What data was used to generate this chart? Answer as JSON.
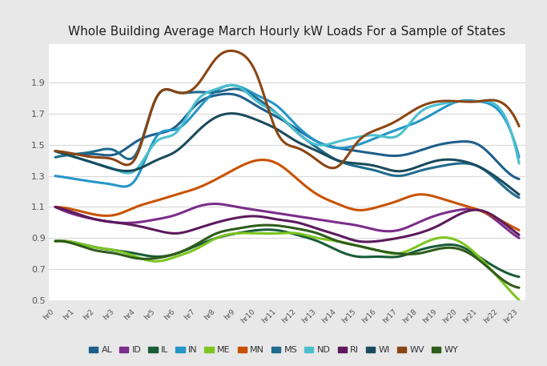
{
  "title": "Whole Building Average March Hourly kW Loads For a Sample of States",
  "hours": [
    "hr0",
    "hr1",
    "hr2",
    "hr3",
    "hr4",
    "hr5",
    "hr6",
    "hr7",
    "hr8",
    "hr9",
    "hr10",
    "hr11",
    "hr12",
    "hr13",
    "hr14",
    "hr15",
    "hr16",
    "hr17",
    "hr18",
    "hr19",
    "hr20",
    "hr21",
    "hr22",
    "hr23"
  ],
  "series": {
    "AL": {
      "color": "#1F5F8B",
      "data": [
        1.46,
        1.44,
        1.44,
        1.44,
        1.52,
        1.57,
        1.62,
        1.76,
        1.82,
        1.82,
        1.75,
        1.68,
        1.6,
        1.52,
        1.48,
        1.46,
        1.44,
        1.43,
        1.46,
        1.5,
        1.52,
        1.5,
        1.38,
        1.28
      ]
    },
    "ID": {
      "color": "#7B2D8B",
      "data": [
        1.1,
        1.05,
        1.02,
        1.0,
        1.0,
        1.02,
        1.05,
        1.1,
        1.12,
        1.1,
        1.08,
        1.06,
        1.04,
        1.02,
        1.0,
        0.98,
        0.95,
        0.95,
        1.0,
        1.05,
        1.08,
        1.08,
        1.0,
        0.9
      ]
    },
    "IL": {
      "color": "#1A5C38",
      "data": [
        0.88,
        0.87,
        0.84,
        0.82,
        0.8,
        0.78,
        0.8,
        0.85,
        0.9,
        0.93,
        0.95,
        0.95,
        0.92,
        0.88,
        0.82,
        0.78,
        0.78,
        0.78,
        0.82,
        0.85,
        0.85,
        0.78,
        0.7,
        0.65
      ]
    },
    "IN": {
      "color": "#2496C8",
      "data": [
        1.3,
        1.28,
        1.26,
        1.24,
        1.28,
        1.55,
        1.6,
        1.72,
        1.85,
        1.88,
        1.82,
        1.75,
        1.62,
        1.52,
        1.48,
        1.5,
        1.55,
        1.6,
        1.65,
        1.72,
        1.78,
        1.78,
        1.72,
        1.42
      ]
    },
    "ME": {
      "color": "#7DC421",
      "data": [
        0.88,
        0.87,
        0.84,
        0.82,
        0.78,
        0.75,
        0.78,
        0.83,
        0.9,
        0.93,
        0.93,
        0.93,
        0.93,
        0.9,
        0.88,
        0.85,
        0.82,
        0.8,
        0.85,
        0.9,
        0.88,
        0.78,
        0.64,
        0.5
      ]
    },
    "MN": {
      "color": "#C85200",
      "data": [
        1.1,
        1.08,
        1.05,
        1.05,
        1.1,
        1.14,
        1.18,
        1.22,
        1.28,
        1.35,
        1.4,
        1.38,
        1.28,
        1.18,
        1.12,
        1.08,
        1.1,
        1.14,
        1.18,
        1.16,
        1.12,
        1.08,
        1.02,
        0.95
      ]
    },
    "MS": {
      "color": "#1F6B8E",
      "data": [
        1.42,
        1.44,
        1.46,
        1.46,
        1.44,
        1.8,
        1.84,
        1.84,
        1.84,
        1.86,
        1.8,
        1.7,
        1.58,
        1.48,
        1.4,
        1.36,
        1.33,
        1.3,
        1.33,
        1.36,
        1.38,
        1.36,
        1.26,
        1.16
      ]
    },
    "ND": {
      "color": "#4BBFCE",
      "data": [
        1.46,
        1.42,
        1.38,
        1.34,
        1.34,
        1.52,
        1.58,
        1.78,
        1.86,
        1.88,
        1.78,
        1.7,
        1.58,
        1.5,
        1.52,
        1.55,
        1.56,
        1.56,
        1.7,
        1.76,
        1.78,
        1.78,
        1.74,
        1.38
      ]
    },
    "RI": {
      "color": "#5C1A5C",
      "data": [
        1.1,
        1.06,
        1.02,
        1.0,
        0.98,
        0.95,
        0.93,
        0.96,
        1.0,
        1.03,
        1.04,
        1.02,
        1.0,
        0.96,
        0.92,
        0.88,
        0.88,
        0.9,
        0.93,
        0.98,
        1.05,
        1.08,
        1.02,
        0.92
      ]
    },
    "WI": {
      "color": "#1A4B5C",
      "data": [
        1.46,
        1.42,
        1.38,
        1.34,
        1.34,
        1.4,
        1.46,
        1.58,
        1.68,
        1.7,
        1.66,
        1.6,
        1.52,
        1.46,
        1.4,
        1.38,
        1.36,
        1.33,
        1.36,
        1.4,
        1.4,
        1.36,
        1.28,
        1.18
      ]
    },
    "WV": {
      "color": "#8B4513",
      "data": [
        1.46,
        1.44,
        1.42,
        1.4,
        1.42,
        1.8,
        1.84,
        1.88,
        2.06,
        2.1,
        1.95,
        1.58,
        1.48,
        1.4,
        1.36,
        1.52,
        1.6,
        1.66,
        1.74,
        1.78,
        1.78,
        1.78,
        1.78,
        1.62
      ]
    },
    "WY": {
      "color": "#2E5C1A",
      "data": [
        0.88,
        0.86,
        0.82,
        0.8,
        0.77,
        0.77,
        0.8,
        0.86,
        0.93,
        0.96,
        0.98,
        0.98,
        0.96,
        0.93,
        0.88,
        0.85,
        0.82,
        0.8,
        0.8,
        0.83,
        0.83,
        0.76,
        0.65,
        0.58
      ]
    }
  },
  "ylim": [
    0.5,
    2.15
  ],
  "yticks": [
    0.5,
    0.7,
    0.9,
    1.1,
    1.3,
    1.5,
    1.7,
    1.9
  ],
  "plot_bg": "#ffffff",
  "outer_bg": "#e8e8e8",
  "grid_color": "#d8d8d8",
  "title_fontsize": 11,
  "legend_states": [
    "AL",
    "ID",
    "IL",
    "IN",
    "ME",
    "MN",
    "MS",
    "ND",
    "RI",
    "WI",
    "WV",
    "WY"
  ]
}
